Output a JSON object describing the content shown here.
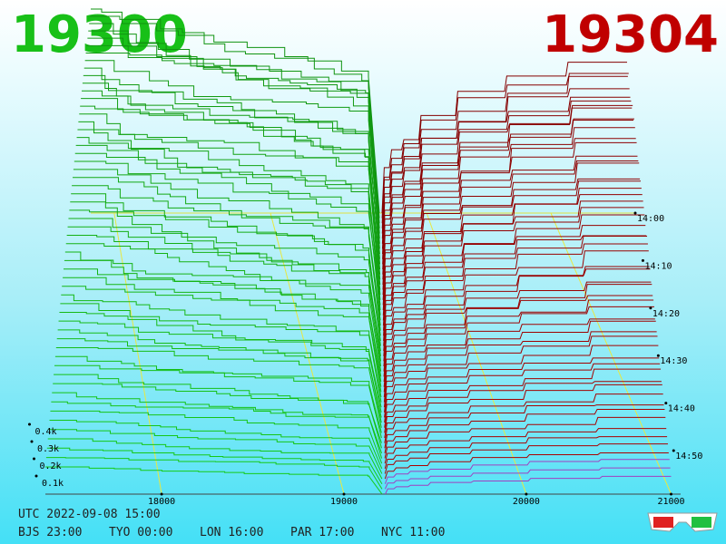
{
  "header": {
    "bid": "19300",
    "ask": "19304"
  },
  "price_axis": [
    "18000",
    "19000",
    "20000",
    "21000"
  ],
  "time_axis": [
    "14:00",
    "14:10",
    "14:20",
    "14:30",
    "14:40",
    "14:50"
  ],
  "depth_axis": [
    "0.1k",
    "0.2k",
    "0.3k",
    "0.4k"
  ],
  "footer": {
    "utc": "UTC 2022-09-08 15:00",
    "zones": [
      "BJS 23:00",
      "TYO 00:00",
      "LON 16:00",
      "PAR 17:00",
      "NYC 11:00"
    ]
  }
}
